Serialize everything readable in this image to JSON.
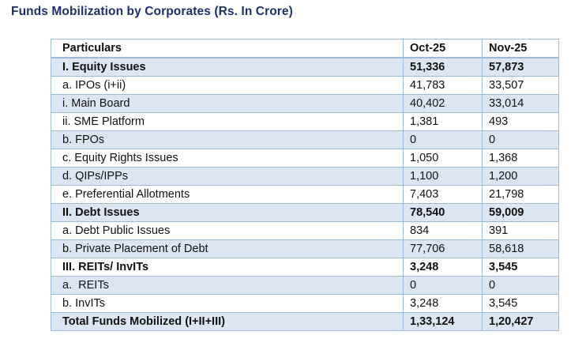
{
  "title": "Funds Mobilization by Corporates (Rs. In Crore)",
  "table": {
    "headers": [
      "Particulars",
      "Oct-25",
      "Nov-25"
    ],
    "rows": [
      {
        "label": "I. Equity Issues",
        "oct": "51,336",
        "nov": "57,873"
      },
      {
        "label": "a. IPOs (i+ii)",
        "oct": "41,783",
        "nov": "33,507"
      },
      {
        "label": "i. Main Board",
        "oct": "40,402",
        "nov": "33,014"
      },
      {
        "label": "ii. SME Platform",
        "oct": "1,381",
        "nov": "493"
      },
      {
        "label": "b. FPOs",
        "oct": "0",
        "nov": "0"
      },
      {
        "label": "c. Equity Rights Issues",
        "oct": "1,050",
        "nov": "1,368"
      },
      {
        "label": "d. QIPs/IPPs",
        "oct": "1,100",
        "nov": "1,200"
      },
      {
        "label": "e. Preferential Allotments",
        "oct": "7,403",
        "nov": "21,798"
      },
      {
        "label": "II. Debt Issues",
        "oct": "78,540",
        "nov": "59,009"
      },
      {
        "label": "a. Debt Public Issues",
        "oct": "834",
        "nov": "391"
      },
      {
        "label": "b. Private Placement of Debt",
        "oct": "77,706",
        "nov": "58,618"
      },
      {
        "label": "III. REITs/ InvITs",
        "oct": "3,248",
        "nov": "3,545"
      },
      {
        "label": "a.  REITs",
        "oct": "0",
        "nov": "0"
      },
      {
        "label": "b. InvITs",
        "oct": "3,248",
        "nov": "3,545"
      },
      {
        "label": "Total Funds Mobilized (I+II+III)",
        "oct": "1,33,124",
        "nov": "1,20,427"
      }
    ]
  },
  "colors": {
    "title": "#1f2f6e",
    "shade": "#dce6f2",
    "border": "#9dbbd9"
  }
}
